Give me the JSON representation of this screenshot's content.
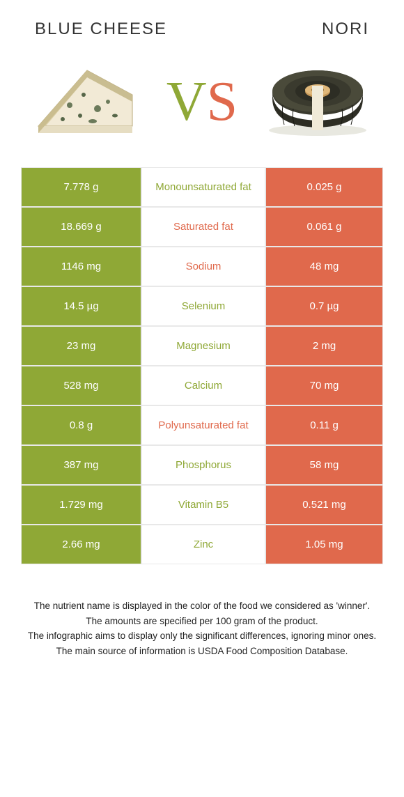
{
  "header": {
    "left_title": "Blue Cheese",
    "right_title": "Nori",
    "vs_v": "V",
    "vs_s": "S"
  },
  "colors": {
    "left": "#8fa836",
    "right": "#e0694c",
    "mid_bg": "#ffffff",
    "border": "#e8e8e8",
    "text_dark": "#333333"
  },
  "table": {
    "rows": [
      {
        "left": "7.778 g",
        "mid": "Monounsaturated fat",
        "mid_color": "#8fa836",
        "right": "0.025 g"
      },
      {
        "left": "18.669 g",
        "mid": "Saturated fat",
        "mid_color": "#e0694c",
        "right": "0.061 g"
      },
      {
        "left": "1146 mg",
        "mid": "Sodium",
        "mid_color": "#e0694c",
        "right": "48 mg"
      },
      {
        "left": "14.5 µg",
        "mid": "Selenium",
        "mid_color": "#8fa836",
        "right": "0.7 µg"
      },
      {
        "left": "23 mg",
        "mid": "Magnesium",
        "mid_color": "#8fa836",
        "right": "2 mg"
      },
      {
        "left": "528 mg",
        "mid": "Calcium",
        "mid_color": "#8fa836",
        "right": "70 mg"
      },
      {
        "left": "0.8 g",
        "mid": "Polyunsaturated fat",
        "mid_color": "#e0694c",
        "right": "0.11 g"
      },
      {
        "left": "387 mg",
        "mid": "Phosphorus",
        "mid_color": "#8fa836",
        "right": "58 mg"
      },
      {
        "left": "1.729 mg",
        "mid": "Vitamin B5",
        "mid_color": "#8fa836",
        "right": "0.521 mg"
      },
      {
        "left": "2.66 mg",
        "mid": "Zinc",
        "mid_color": "#8fa836",
        "right": "1.05 mg"
      }
    ]
  },
  "footnote": {
    "line1": "The nutrient name is displayed in the color of the food we considered as 'winner'.",
    "line2": "The amounts are specified per 100 gram of the product.",
    "line3": "The infographic aims to display only the significant differences, ignoring minor ones.",
    "line4": "The main source of information is USDA Food Composition Database."
  }
}
